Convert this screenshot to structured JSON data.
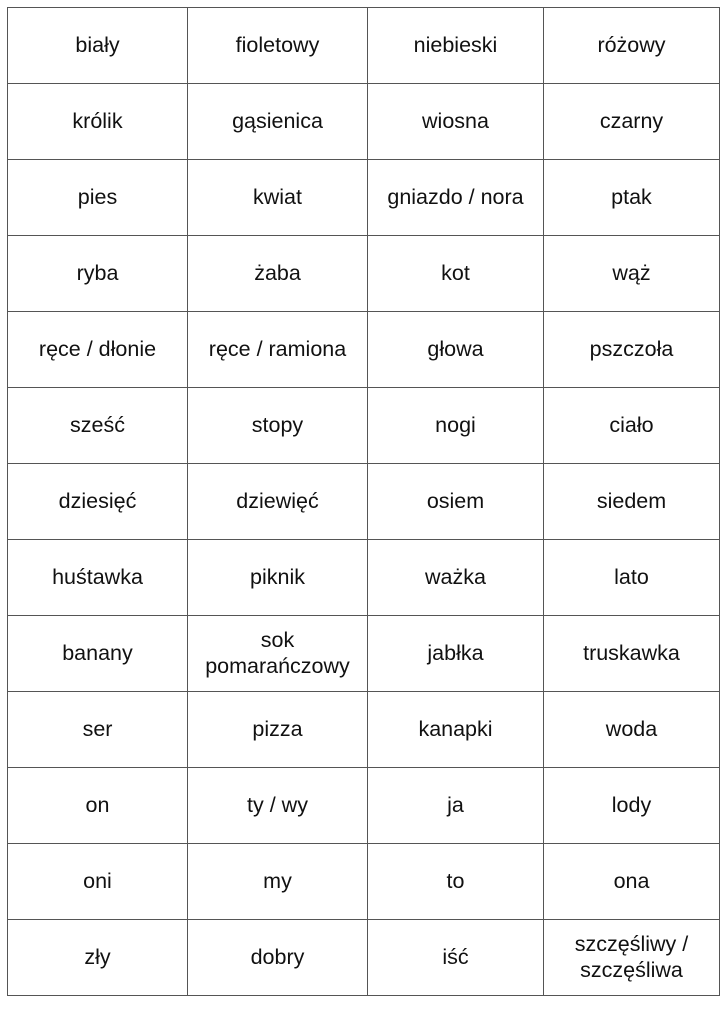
{
  "rows": [
    [
      "biały",
      "fioletowy",
      "niebieski",
      "różowy"
    ],
    [
      "królik",
      "gąsienica",
      "wiosna",
      "czarny"
    ],
    [
      "pies",
      "kwiat",
      "gniazdo / nora",
      "ptak"
    ],
    [
      "ryba",
      "żaba",
      "kot",
      "wąż"
    ],
    [
      "ręce / dłonie",
      "ręce / ramiona",
      "głowa",
      "pszczoła"
    ],
    [
      "sześć",
      "stopy",
      "nogi",
      "ciało"
    ],
    [
      "dziesięć",
      "dziewięć",
      "osiem",
      "siedem"
    ],
    [
      "huśtawka",
      "piknik",
      "ważka",
      "lato"
    ],
    [
      "banany",
      "sok pomarańczowy",
      "jabłka",
      "truskawka"
    ],
    [
      "ser",
      "pizza",
      "kanapki",
      "woda"
    ],
    [
      "on",
      "ty / wy",
      "ja",
      "lody"
    ],
    [
      "oni",
      "my",
      "to",
      "ona"
    ],
    [
      "zły",
      "dobry",
      "iść",
      "szczęśliwy / szczęśliwa"
    ]
  ]
}
